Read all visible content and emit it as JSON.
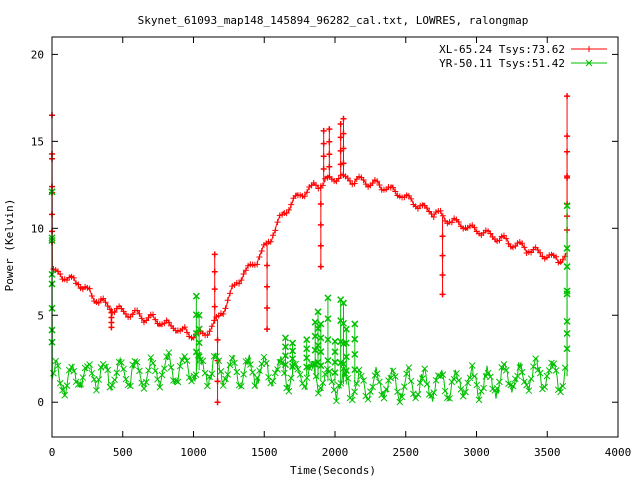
{
  "chart_data": {
    "type": "line",
    "title": "Skynet_61093_map148_145894_96282_cal.txt, LOWRES, ralongmap",
    "xlabel": "Time(Seconds)",
    "ylabel": "Power (Kelvin)",
    "xlim": [
      0,
      4000
    ],
    "ylim": [
      -2,
      21
    ],
    "xticks": [
      0,
      500,
      1000,
      1500,
      2000,
      2500,
      3000,
      3500,
      4000
    ],
    "yticks": [
      0,
      5,
      10,
      15,
      20
    ],
    "grid": false,
    "legend_position": "top-right",
    "series": [
      {
        "name": "XL-65.24 Tsys:73.62",
        "color": "#ff0000",
        "marker": "+",
        "points": [
          [
            0,
            16.5
          ],
          [
            0,
            7.6
          ],
          [
            30,
            7.4
          ],
          [
            100,
            7.2
          ],
          [
            200,
            6.8
          ],
          [
            300,
            6.0
          ],
          [
            400,
            5.5
          ],
          [
            500,
            5.2
          ],
          [
            600,
            5.0
          ],
          [
            700,
            4.8
          ],
          [
            800,
            4.5
          ],
          [
            900,
            4.2
          ],
          [
            950,
            4.0
          ],
          [
            1000,
            3.9
          ],
          [
            1030,
            4.0
          ],
          [
            1060,
            3.9
          ],
          [
            1100,
            4.1
          ],
          [
            1150,
            4.5
          ],
          [
            1200,
            5.2
          ],
          [
            1250,
            6.0
          ],
          [
            1300,
            6.8
          ],
          [
            1350,
            7.3
          ],
          [
            1400,
            7.7
          ],
          [
            1450,
            8.2
          ],
          [
            1500,
            8.8
          ],
          [
            1550,
            9.5
          ],
          [
            1600,
            10.4
          ],
          [
            1650,
            11.0
          ],
          [
            1700,
            11.5
          ],
          [
            1750,
            11.9
          ],
          [
            1800,
            12.2
          ],
          [
            1850,
            12.4
          ],
          [
            1900,
            12.6
          ],
          [
            1950,
            12.8
          ],
          [
            2000,
            12.9
          ],
          [
            2050,
            12.9
          ],
          [
            2100,
            12.8
          ],
          [
            2200,
            12.7
          ],
          [
            2300,
            12.5
          ],
          [
            2400,
            12.2
          ],
          [
            2500,
            11.8
          ],
          [
            2600,
            11.3
          ],
          [
            2700,
            10.9
          ],
          [
            2800,
            10.5
          ],
          [
            2900,
            10.2
          ],
          [
            3000,
            9.9
          ],
          [
            3100,
            9.6
          ],
          [
            3200,
            9.3
          ],
          [
            3300,
            9.0
          ],
          [
            3400,
            8.7
          ],
          [
            3500,
            8.4
          ],
          [
            3600,
            8.2
          ],
          [
            3640,
            8.4
          ]
        ],
        "spikes": [
          [
            0,
            16.5
          ],
          [
            0,
            14.0
          ],
          [
            420,
            4.3
          ],
          [
            1150,
            8.5
          ],
          [
            1170,
            0.0
          ],
          [
            1520,
            4.2
          ],
          [
            1900,
            7.8
          ],
          [
            1920,
            15.6
          ],
          [
            1960,
            15.7
          ],
          [
            2040,
            16.0
          ],
          [
            2060,
            16.3
          ],
          [
            2760,
            6.2
          ],
          [
            3640,
            17.6
          ],
          [
            3640,
            14.4
          ]
        ]
      },
      {
        "name": "YR-50.11 Tsys:51.42",
        "color": "#00c000",
        "marker": "x",
        "points": [
          [
            0,
            12.1
          ],
          [
            0,
            1.5
          ],
          [
            100,
            1.4
          ],
          [
            200,
            1.5
          ],
          [
            300,
            1.6
          ],
          [
            400,
            1.5
          ],
          [
            500,
            1.6
          ],
          [
            600,
            1.7
          ],
          [
            700,
            1.8
          ],
          [
            800,
            1.9
          ],
          [
            900,
            1.9
          ],
          [
            1000,
            1.8
          ],
          [
            1100,
            1.9
          ],
          [
            1200,
            1.9
          ],
          [
            1300,
            1.8
          ],
          [
            1400,
            1.8
          ],
          [
            1500,
            1.8
          ],
          [
            1600,
            1.7
          ],
          [
            1700,
            1.6
          ],
          [
            1800,
            1.5
          ],
          [
            1900,
            1.3
          ],
          [
            2000,
            1.1
          ],
          [
            2100,
            1.0
          ],
          [
            2200,
            1.0
          ],
          [
            2300,
            1.0
          ],
          [
            2400,
            1.0
          ],
          [
            2500,
            1.0
          ],
          [
            2600,
            1.0
          ],
          [
            2700,
            1.0
          ],
          [
            2800,
            1.0
          ],
          [
            2900,
            1.0
          ],
          [
            3000,
            1.1
          ],
          [
            3100,
            1.2
          ],
          [
            3200,
            1.3
          ],
          [
            3300,
            1.4
          ],
          [
            3400,
            1.5
          ],
          [
            3500,
            1.6
          ],
          [
            3640,
            1.5
          ]
        ],
        "spikes": [
          [
            0,
            12.1
          ],
          [
            0,
            9.3
          ],
          [
            1020,
            6.1
          ],
          [
            1040,
            5.0
          ],
          [
            1650,
            3.7
          ],
          [
            1700,
            3.4
          ],
          [
            1800,
            3.6
          ],
          [
            1860,
            4.6
          ],
          [
            1880,
            5.2
          ],
          [
            1900,
            4.5
          ],
          [
            1950,
            6.0
          ],
          [
            2000,
            3.5
          ],
          [
            2040,
            5.9
          ],
          [
            2060,
            5.7
          ],
          [
            2080,
            4.2
          ],
          [
            2140,
            4.5
          ],
          [
            3640,
            11.3
          ],
          [
            3640,
            7.8
          ]
        ]
      }
    ]
  }
}
